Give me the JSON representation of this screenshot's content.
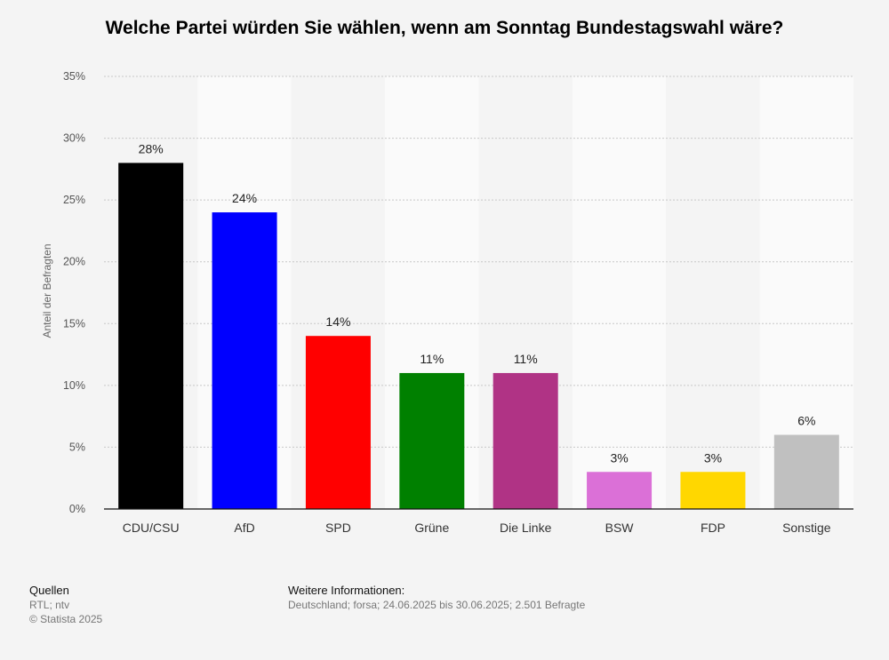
{
  "chart_data": {
    "type": "bar",
    "title": "Welche Partei würden Sie wählen, wenn am Sonntag Bundestagswahl wäre?",
    "ylabel": "Anteil der Befragten",
    "xlabel": "",
    "ylim": [
      0,
      35
    ],
    "yticks": [
      "0%",
      "5%",
      "10%",
      "15%",
      "20%",
      "25%",
      "30%",
      "35%"
    ],
    "categories": [
      "CDU/CSU",
      "AfD",
      "SPD",
      "Grüne",
      "Die Linke",
      "BSW",
      "FDP",
      "Sonstige"
    ],
    "values": [
      28,
      24,
      14,
      11,
      11,
      3,
      3,
      6
    ],
    "data_labels": [
      "28%",
      "24%",
      "14%",
      "11%",
      "11%",
      "3%",
      "3%",
      "6%"
    ],
    "colors": [
      "#000000",
      "#0000ff",
      "#ff0000",
      "#008000",
      "#b03385",
      "#db70d7",
      "#ffd700",
      "#c0c0c0"
    ],
    "grid": true
  },
  "footer": {
    "sources_heading": "Quellen",
    "sources": "RTL; ntv",
    "copyright": "© Statista 2025",
    "info_heading": "Weitere Informationen:",
    "info": "Deutschland; forsa; 24.06.2025 bis 30.06.2025; 2.501 Befragte"
  }
}
